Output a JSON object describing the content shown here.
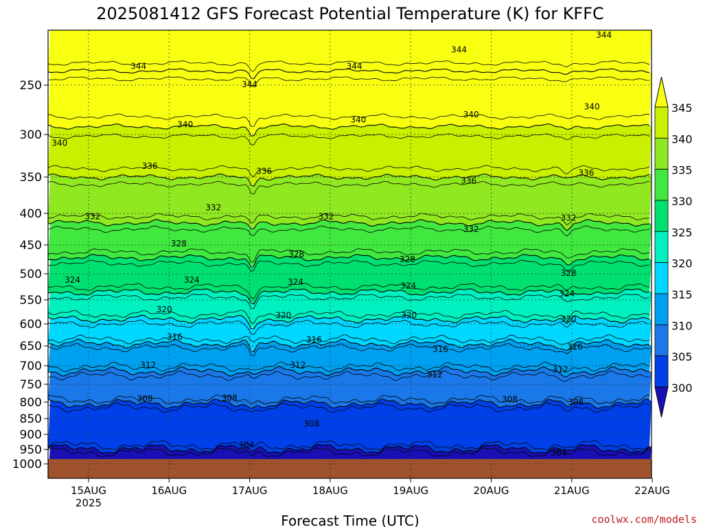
{
  "chart_data": {
    "type": "heatmap",
    "title": "2025081412 GFS Forecast Potential Temperature (K) for KFFC",
    "xlabel": "Forecast Time (UTC)",
    "ylabel": "",
    "credit": "coolwx.com/models",
    "y_axis": {
      "scale": "pressure",
      "range": [
        1020,
        180
      ],
      "ticks": [
        "250",
        "300",
        "350",
        "400",
        "450",
        "500",
        "550",
        "600",
        "650",
        "700",
        "750",
        "800",
        "850",
        "900",
        "950",
        "1000"
      ]
    },
    "x_axis": {
      "ticks": [
        {
          "label": "15AUG",
          "sublabel": "2025"
        },
        {
          "label": "16AUG",
          "sublabel": ""
        },
        {
          "label": "17AUG",
          "sublabel": ""
        },
        {
          "label": "18AUG",
          "sublabel": ""
        },
        {
          "label": "19AUG",
          "sublabel": ""
        },
        {
          "label": "20AUG",
          "sublabel": ""
        },
        {
          "label": "21AUG",
          "sublabel": ""
        },
        {
          "label": "22AUG",
          "sublabel": ""
        }
      ]
    },
    "grid": true,
    "colorbar": {
      "ticks": [
        "345",
        "340",
        "335",
        "330",
        "325",
        "320",
        "315",
        "310",
        "305",
        "300"
      ],
      "colors": [
        "#1810b5",
        "#0040e8",
        "#1a78e8",
        "#00a0f0",
        "#00d8ff",
        "#00f0c0",
        "#00e070",
        "#40e840",
        "#90e820",
        "#c8f000",
        "#f8ff10"
      ]
    },
    "contour_levels": [
      {
        "level": 304,
        "pressure": 948
      },
      {
        "level": 308,
        "pressure": 805
      },
      {
        "level": 312,
        "pressure": 715
      },
      {
        "level": 316,
        "pressure": 645
      },
      {
        "level": 320,
        "pressure": 590
      },
      {
        "level": 324,
        "pressure": 535
      },
      {
        "level": 328,
        "pressure": 472
      },
      {
        "level": 332,
        "pressure": 415
      },
      {
        "level": 336,
        "pressure": 350
      },
      {
        "level": 340,
        "pressure": 292
      },
      {
        "level": 344,
        "pressure": 232
      }
    ],
    "contour_labels": [
      {
        "text": "344",
        "time": 0.62,
        "pressure": 226
      },
      {
        "text": "344",
        "time": 2.0,
        "pressure": 249
      },
      {
        "text": "344",
        "time": 3.3,
        "pressure": 226
      },
      {
        "text": "344",
        "time": 4.6,
        "pressure": 205
      },
      {
        "text": "344",
        "time": 6.4,
        "pressure": 186
      },
      {
        "text": "340",
        "time": -0.36,
        "pressure": 310
      },
      {
        "text": "340",
        "time": 1.2,
        "pressure": 290
      },
      {
        "text": "340",
        "time": 3.35,
        "pressure": 285
      },
      {
        "text": "340",
        "time": 4.75,
        "pressure": 280
      },
      {
        "text": "340",
        "time": 6.25,
        "pressure": 272
      },
      {
        "text": "336",
        "time": 0.76,
        "pressure": 337
      },
      {
        "text": "336",
        "time": 2.18,
        "pressure": 343
      },
      {
        "text": "336",
        "time": 4.72,
        "pressure": 355
      },
      {
        "text": "336",
        "time": 6.18,
        "pressure": 345
      },
      {
        "text": "332",
        "time": 0.05,
        "pressure": 405
      },
      {
        "text": "332",
        "time": 1.55,
        "pressure": 392
      },
      {
        "text": "332",
        "time": 2.95,
        "pressure": 405
      },
      {
        "text": "332",
        "time": 4.75,
        "pressure": 425
      },
      {
        "text": "332",
        "time": 5.96,
        "pressure": 407
      },
      {
        "text": "328",
        "time": 1.12,
        "pressure": 448
      },
      {
        "text": "328",
        "time": 2.58,
        "pressure": 466
      },
      {
        "text": "328",
        "time": 3.96,
        "pressure": 475
      },
      {
        "text": "328",
        "time": 5.96,
        "pressure": 499
      },
      {
        "text": "324",
        "time": -0.2,
        "pressure": 512
      },
      {
        "text": "324",
        "time": 1.28,
        "pressure": 512
      },
      {
        "text": "324",
        "time": 2.57,
        "pressure": 516
      },
      {
        "text": "324",
        "time": 3.97,
        "pressure": 523
      },
      {
        "text": "324",
        "time": 5.94,
        "pressure": 538
      },
      {
        "text": "320",
        "time": 0.94,
        "pressure": 570
      },
      {
        "text": "320",
        "time": 2.42,
        "pressure": 582
      },
      {
        "text": "320",
        "time": 3.98,
        "pressure": 582
      },
      {
        "text": "320",
        "time": 5.96,
        "pressure": 590
      },
      {
        "text": "316",
        "time": 1.07,
        "pressure": 630
      },
      {
        "text": "316",
        "time": 2.8,
        "pressure": 636
      },
      {
        "text": "316",
        "time": 4.37,
        "pressure": 659
      },
      {
        "text": "316",
        "time": 6.04,
        "pressure": 653
      },
      {
        "text": "312",
        "time": 0.74,
        "pressure": 698
      },
      {
        "text": "312",
        "time": 2.6,
        "pressure": 698
      },
      {
        "text": "312",
        "time": 4.3,
        "pressure": 724
      },
      {
        "text": "312",
        "time": 5.86,
        "pressure": 710
      },
      {
        "text": "308",
        "time": 0.7,
        "pressure": 790
      },
      {
        "text": "308",
        "time": 1.75,
        "pressure": 788
      },
      {
        "text": "308",
        "time": 2.77,
        "pressure": 866
      },
      {
        "text": "308",
        "time": 5.23,
        "pressure": 792
      },
      {
        "text": "308",
        "time": 6.05,
        "pressure": 800
      },
      {
        "text": "304",
        "time": 1.96,
        "pressure": 935
      },
      {
        "text": "304",
        "time": 5.84,
        "pressure": 962
      }
    ]
  }
}
